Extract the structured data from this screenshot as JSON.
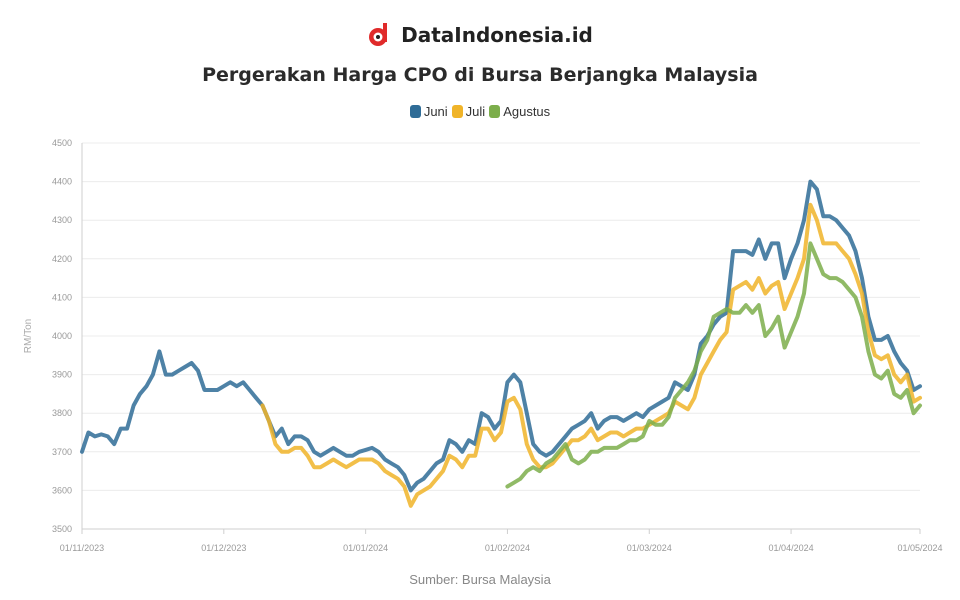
{
  "brand": {
    "name": "DataIndonesia.id",
    "logo_color": "#e02a2a"
  },
  "chart_data": {
    "type": "line",
    "title": "Pergerakan Harga CPO di Bursa Berjangka Malaysia",
    "xlabel": "",
    "ylabel": "RM/Ton",
    "source": "Sumber: Bursa Malaysia",
    "ylim": [
      3500,
      4500
    ],
    "yticks": [
      "3500",
      "3600",
      "3700",
      "3800",
      "3900",
      "4000",
      "4100",
      "4200",
      "4300",
      "4400",
      "4500"
    ],
    "xlim": [
      0,
      130
    ],
    "xticks": [
      {
        "x": 0,
        "label": "01/11/2023"
      },
      {
        "x": 22,
        "label": "01/12/2023"
      },
      {
        "x": 44,
        "label": "01/01/2024"
      },
      {
        "x": 66,
        "label": "01/02/2024"
      },
      {
        "x": 88,
        "label": "01/03/2024"
      },
      {
        "x": 110,
        "label": "01/04/2024"
      },
      {
        "x": 130,
        "label": "01/05/2024"
      }
    ],
    "grid": true,
    "legend_position": "top",
    "series": [
      {
        "name": "Juni",
        "color": "#2f6c97",
        "points": [
          [
            0,
            3700
          ],
          [
            1,
            3750
          ],
          [
            2,
            3740
          ],
          [
            3,
            3745
          ],
          [
            4,
            3740
          ],
          [
            5,
            3720
          ],
          [
            6,
            3760
          ],
          [
            7,
            3760
          ],
          [
            8,
            3820
          ],
          [
            9,
            3850
          ],
          [
            10,
            3870
          ],
          [
            11,
            3900
          ],
          [
            12,
            3960
          ],
          [
            13,
            3900
          ],
          [
            14,
            3900
          ],
          [
            15,
            3910
          ],
          [
            16,
            3920
          ],
          [
            17,
            3930
          ],
          [
            18,
            3910
          ],
          [
            19,
            3860
          ],
          [
            20,
            3860
          ],
          [
            21,
            3860
          ],
          [
            22,
            3870
          ],
          [
            23,
            3880
          ],
          [
            24,
            3870
          ],
          [
            25,
            3880
          ],
          [
            26,
            3860
          ],
          [
            27,
            3840
          ],
          [
            28,
            3820
          ],
          [
            29,
            3780
          ],
          [
            30,
            3740
          ],
          [
            31,
            3760
          ],
          [
            32,
            3720
          ],
          [
            33,
            3740
          ],
          [
            34,
            3740
          ],
          [
            35,
            3730
          ],
          [
            36,
            3700
          ],
          [
            37,
            3690
          ],
          [
            38,
            3700
          ],
          [
            39,
            3710
          ],
          [
            40,
            3700
          ],
          [
            41,
            3690
          ],
          [
            42,
            3690
          ],
          [
            43,
            3700
          ],
          [
            44,
            3705
          ],
          [
            45,
            3710
          ],
          [
            46,
            3700
          ],
          [
            47,
            3680
          ],
          [
            48,
            3670
          ],
          [
            49,
            3660
          ],
          [
            50,
            3640
          ],
          [
            51,
            3600
          ],
          [
            52,
            3620
          ],
          [
            53,
            3630
          ],
          [
            54,
            3650
          ],
          [
            55,
            3670
          ],
          [
            56,
            3680
          ],
          [
            57,
            3730
          ],
          [
            58,
            3720
          ],
          [
            59,
            3700
          ],
          [
            60,
            3730
          ],
          [
            61,
            3720
          ],
          [
            62,
            3800
          ],
          [
            63,
            3790
          ],
          [
            64,
            3760
          ],
          [
            65,
            3780
          ],
          [
            66,
            3880
          ],
          [
            67,
            3900
          ],
          [
            68,
            3880
          ],
          [
            69,
            3800
          ],
          [
            70,
            3720
          ],
          [
            71,
            3700
          ],
          [
            72,
            3690
          ],
          [
            73,
            3700
          ],
          [
            74,
            3720
          ],
          [
            75,
            3740
          ],
          [
            76,
            3760
          ],
          [
            77,
            3770
          ],
          [
            78,
            3780
          ],
          [
            79,
            3800
          ],
          [
            80,
            3760
          ],
          [
            81,
            3780
          ],
          [
            82,
            3790
          ],
          [
            83,
            3790
          ],
          [
            84,
            3780
          ],
          [
            85,
            3790
          ],
          [
            86,
            3800
          ],
          [
            87,
            3790
          ],
          [
            88,
            3810
          ],
          [
            89,
            3820
          ],
          [
            90,
            3830
          ],
          [
            91,
            3840
          ],
          [
            92,
            3880
          ],
          [
            93,
            3870
          ],
          [
            94,
            3860
          ],
          [
            95,
            3900
          ],
          [
            96,
            3980
          ],
          [
            97,
            4000
          ],
          [
            98,
            4030
          ],
          [
            99,
            4050
          ],
          [
            100,
            4060
          ],
          [
            101,
            4220
          ],
          [
            102,
            4220
          ],
          [
            103,
            4220
          ],
          [
            104,
            4210
          ],
          [
            105,
            4250
          ],
          [
            106,
            4200
          ],
          [
            107,
            4240
          ],
          [
            108,
            4240
          ],
          [
            109,
            4150
          ],
          [
            110,
            4200
          ],
          [
            111,
            4240
          ],
          [
            112,
            4300
          ],
          [
            113,
            4400
          ],
          [
            114,
            4380
          ],
          [
            115,
            4310
          ],
          [
            116,
            4310
          ],
          [
            117,
            4300
          ],
          [
            118,
            4280
          ],
          [
            119,
            4260
          ],
          [
            120,
            4220
          ],
          [
            121,
            4150
          ],
          [
            122,
            4050
          ],
          [
            123,
            3990
          ],
          [
            124,
            3990
          ],
          [
            125,
            4000
          ],
          [
            126,
            3960
          ],
          [
            127,
            3930
          ],
          [
            128,
            3910
          ],
          [
            129,
            3860
          ],
          [
            130,
            3870
          ]
        ]
      },
      {
        "name": "Juli",
        "color": "#f0b429",
        "points": [
          [
            28,
            3820
          ],
          [
            29,
            3780
          ],
          [
            30,
            3720
          ],
          [
            31,
            3700
          ],
          [
            32,
            3700
          ],
          [
            33,
            3710
          ],
          [
            34,
            3710
          ],
          [
            35,
            3690
          ],
          [
            36,
            3660
          ],
          [
            37,
            3660
          ],
          [
            38,
            3670
          ],
          [
            39,
            3680
          ],
          [
            40,
            3670
          ],
          [
            41,
            3660
          ],
          [
            42,
            3670
          ],
          [
            43,
            3680
          ],
          [
            44,
            3680
          ],
          [
            45,
            3680
          ],
          [
            46,
            3670
          ],
          [
            47,
            3650
          ],
          [
            48,
            3640
          ],
          [
            49,
            3630
          ],
          [
            50,
            3610
          ],
          [
            51,
            3560
          ],
          [
            52,
            3590
          ],
          [
            53,
            3600
          ],
          [
            54,
            3610
          ],
          [
            55,
            3630
          ],
          [
            56,
            3650
          ],
          [
            57,
            3690
          ],
          [
            58,
            3680
          ],
          [
            59,
            3660
          ],
          [
            60,
            3690
          ],
          [
            61,
            3690
          ],
          [
            62,
            3760
          ],
          [
            63,
            3760
          ],
          [
            64,
            3730
          ],
          [
            65,
            3750
          ],
          [
            66,
            3830
          ],
          [
            67,
            3840
          ],
          [
            68,
            3810
          ],
          [
            69,
            3720
          ],
          [
            70,
            3680
          ],
          [
            71,
            3660
          ],
          [
            72,
            3660
          ],
          [
            73,
            3670
          ],
          [
            74,
            3690
          ],
          [
            75,
            3710
          ],
          [
            76,
            3730
          ],
          [
            77,
            3730
          ],
          [
            78,
            3740
          ],
          [
            79,
            3760
          ],
          [
            80,
            3730
          ],
          [
            81,
            3740
          ],
          [
            82,
            3750
          ],
          [
            83,
            3750
          ],
          [
            84,
            3740
          ],
          [
            85,
            3750
          ],
          [
            86,
            3760
          ],
          [
            87,
            3760
          ],
          [
            88,
            3770
          ],
          [
            89,
            3780
          ],
          [
            90,
            3790
          ],
          [
            91,
            3800
          ],
          [
            92,
            3830
          ],
          [
            93,
            3820
          ],
          [
            94,
            3810
          ],
          [
            95,
            3840
          ],
          [
            96,
            3900
          ],
          [
            97,
            3930
          ],
          [
            98,
            3960
          ],
          [
            99,
            3990
          ],
          [
            100,
            4010
          ],
          [
            101,
            4120
          ],
          [
            102,
            4130
          ],
          [
            103,
            4140
          ],
          [
            104,
            4120
          ],
          [
            105,
            4150
          ],
          [
            106,
            4110
          ],
          [
            107,
            4130
          ],
          [
            108,
            4140
          ],
          [
            109,
            4070
          ],
          [
            110,
            4110
          ],
          [
            111,
            4150
          ],
          [
            112,
            4200
          ],
          [
            113,
            4340
          ],
          [
            114,
            4300
          ],
          [
            115,
            4240
          ],
          [
            116,
            4240
          ],
          [
            117,
            4240
          ],
          [
            118,
            4220
          ],
          [
            119,
            4200
          ],
          [
            120,
            4160
          ],
          [
            121,
            4110
          ],
          [
            122,
            4010
          ],
          [
            123,
            3950
          ],
          [
            124,
            3940
          ],
          [
            125,
            3950
          ],
          [
            126,
            3900
          ],
          [
            127,
            3880
          ],
          [
            128,
            3900
          ],
          [
            129,
            3830
          ],
          [
            130,
            3840
          ]
        ]
      },
      {
        "name": "Agustus",
        "color": "#7cae4b",
        "points": [
          [
            66,
            3610
          ],
          [
            67,
            3620
          ],
          [
            68,
            3630
          ],
          [
            69,
            3650
          ],
          [
            70,
            3660
          ],
          [
            71,
            3650
          ],
          [
            72,
            3670
          ],
          [
            73,
            3680
          ],
          [
            74,
            3700
          ],
          [
            75,
            3720
          ],
          [
            76,
            3680
          ],
          [
            77,
            3670
          ],
          [
            78,
            3680
          ],
          [
            79,
            3700
          ],
          [
            80,
            3700
          ],
          [
            81,
            3710
          ],
          [
            82,
            3710
          ],
          [
            83,
            3710
          ],
          [
            84,
            3720
          ],
          [
            85,
            3730
          ],
          [
            86,
            3730
          ],
          [
            87,
            3740
          ],
          [
            88,
            3780
          ],
          [
            89,
            3770
          ],
          [
            90,
            3770
          ],
          [
            91,
            3790
          ],
          [
            92,
            3840
          ],
          [
            93,
            3860
          ],
          [
            94,
            3880
          ],
          [
            95,
            3910
          ],
          [
            96,
            3960
          ],
          [
            97,
            3990
          ],
          [
            98,
            4050
          ],
          [
            99,
            4060
          ],
          [
            100,
            4070
          ],
          [
            101,
            4060
          ],
          [
            102,
            4060
          ],
          [
            103,
            4080
          ],
          [
            104,
            4060
          ],
          [
            105,
            4080
          ],
          [
            106,
            4000
          ],
          [
            107,
            4020
          ],
          [
            108,
            4050
          ],
          [
            109,
            3970
          ],
          [
            110,
            4010
          ],
          [
            111,
            4050
          ],
          [
            112,
            4110
          ],
          [
            113,
            4240
          ],
          [
            114,
            4200
          ],
          [
            115,
            4160
          ],
          [
            116,
            4150
          ],
          [
            117,
            4150
          ],
          [
            118,
            4140
          ],
          [
            119,
            4120
          ],
          [
            120,
            4100
          ],
          [
            121,
            4050
          ],
          [
            122,
            3960
          ],
          [
            123,
            3900
          ],
          [
            124,
            3890
          ],
          [
            125,
            3910
          ],
          [
            126,
            3850
          ],
          [
            127,
            3840
          ],
          [
            128,
            3860
          ],
          [
            129,
            3800
          ],
          [
            130,
            3820
          ]
        ]
      }
    ]
  }
}
